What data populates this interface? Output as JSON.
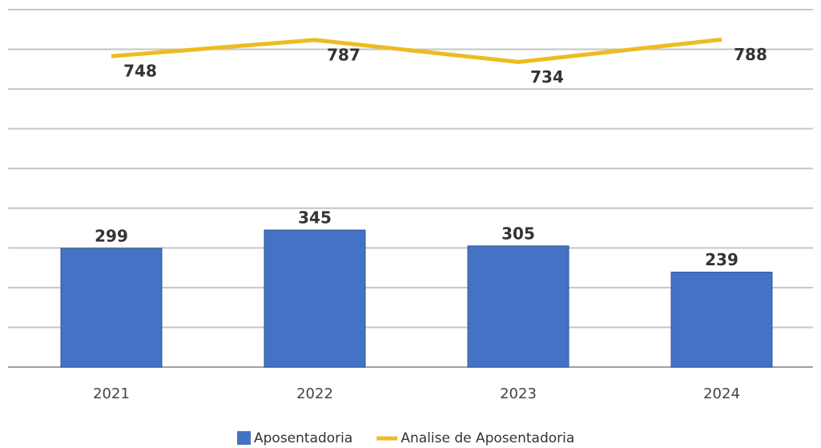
{
  "chart_data": {
    "type": "bar_line",
    "categories": [
      "2021",
      "2022",
      "2023",
      "2024"
    ],
    "series": [
      {
        "name": "Aposentadoria",
        "type": "bar",
        "color": "#4472c4",
        "values": [
          299,
          345,
          305,
          239
        ]
      },
      {
        "name": "Analise de Aposentadoria",
        "type": "line",
        "axis": "y2",
        "color": "#eebb22",
        "values": [
          748,
          787,
          734,
          788
        ]
      }
    ],
    "ylim": [
      0,
      900
    ],
    "yticks": [
      0,
      100,
      200,
      300,
      400,
      500,
      600,
      700,
      800,
      900
    ],
    "y2lim": [
      0,
      860
    ],
    "grid": true,
    "legend": "bottom"
  }
}
